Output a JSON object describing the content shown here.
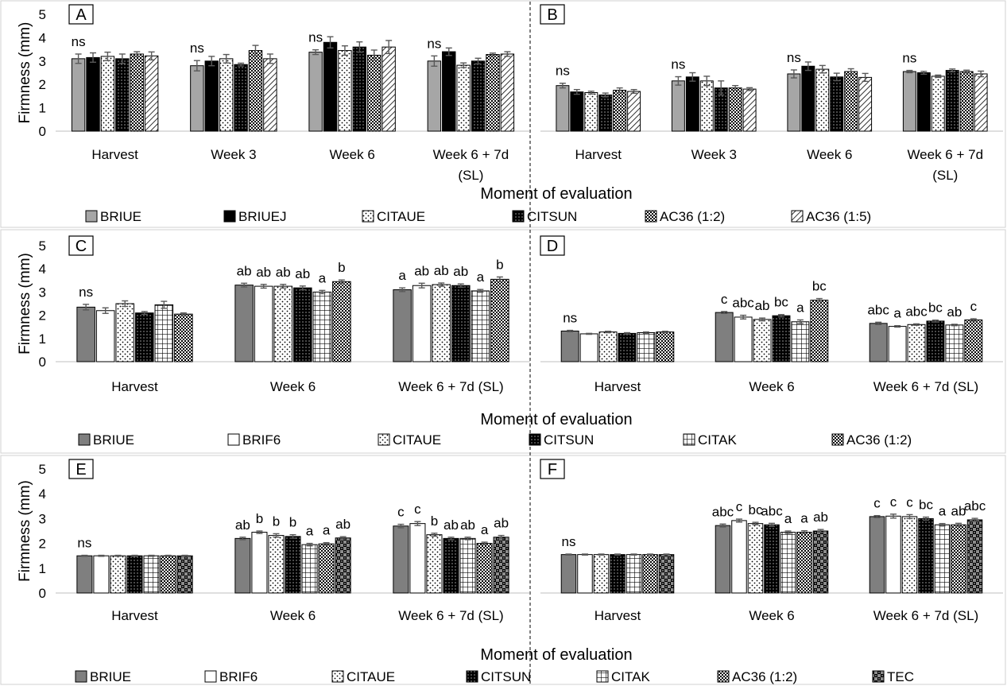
{
  "chart_data": [
    {
      "panel": "A",
      "type": "bar",
      "ylabel": "Firmness (mm)",
      "ylim": [
        0,
        5
      ],
      "categories": [
        "Harvest",
        "Week 3",
        "Week 6",
        "Week 6 + 7d (SL)"
      ],
      "series": [
        {
          "name": "BRIUE",
          "values": [
            3.1,
            2.8,
            3.38,
            3.0
          ],
          "errors": [
            0.2,
            0.22,
            0.1,
            0.22
          ]
        },
        {
          "name": "BRIUEJ",
          "values": [
            3.15,
            3.0,
            3.8,
            3.4
          ],
          "errors": [
            0.2,
            0.2,
            0.24,
            0.16
          ]
        },
        {
          "name": "CITAUE",
          "values": [
            3.2,
            3.1,
            3.45,
            2.82
          ],
          "errors": [
            0.18,
            0.18,
            0.2,
            0.1
          ]
        },
        {
          "name": "CITSUN",
          "values": [
            3.1,
            2.85,
            3.6,
            3.0
          ],
          "errors": [
            0.2,
            0.06,
            0.22,
            0.12
          ]
        },
        {
          "name": "AC36 (1:2)",
          "values": [
            3.3,
            3.45,
            3.25,
            3.28
          ],
          "errors": [
            0.1,
            0.22,
            0.22,
            0.06
          ]
        },
        {
          "name": "AC36 (1:5)",
          "values": [
            3.22,
            3.1,
            3.6,
            3.3
          ],
          "errors": [
            0.17,
            0.2,
            0.28,
            0.1
          ]
        }
      ],
      "significance": [
        "ns",
        "ns",
        "ns",
        "ns"
      ]
    },
    {
      "panel": "B",
      "type": "bar",
      "ylim": [
        0,
        5
      ],
      "categories": [
        "Harvest",
        "Week 3",
        "Week 6",
        "Week 6 + 7d (SL)"
      ],
      "series": [
        {
          "name": "BRIUE",
          "values": [
            1.95,
            2.15,
            2.45,
            2.55
          ],
          "errors": [
            0.1,
            0.18,
            0.17,
            0.05
          ]
        },
        {
          "name": "BRIUEJ",
          "values": [
            1.68,
            2.32,
            2.78,
            2.5
          ],
          "errors": [
            0.1,
            0.18,
            0.18,
            0.06
          ]
        },
        {
          "name": "CITAUE",
          "values": [
            1.65,
            2.15,
            2.65,
            2.35
          ],
          "errors": [
            0.06,
            0.2,
            0.16,
            0.05
          ]
        },
        {
          "name": "CITSUN",
          "values": [
            1.55,
            1.85,
            2.32,
            2.6
          ],
          "errors": [
            0.08,
            0.3,
            0.16,
            0.06
          ]
        },
        {
          "name": "AC36 (1:2)",
          "values": [
            1.75,
            1.85,
            2.55,
            2.55
          ],
          "errors": [
            0.1,
            0.1,
            0.12,
            0.06
          ]
        },
        {
          "name": "AC36 (1:5)",
          "values": [
            1.7,
            1.8,
            2.3,
            2.45
          ],
          "errors": [
            0.08,
            0.06,
            0.17,
            0.12
          ]
        }
      ],
      "significance": [
        "ns",
        "ns",
        "ns",
        "ns"
      ]
    },
    {
      "panel": "C",
      "type": "bar",
      "ylabel": "Firmness (mm)",
      "ylim": [
        0,
        5
      ],
      "categories": [
        "Harvest",
        "Week 6",
        "Week 6 + 7d (SL)"
      ],
      "series": [
        {
          "name": "BRIUE",
          "values": [
            2.35,
            3.3,
            3.1
          ],
          "errors": [
            0.12,
            0.08,
            0.08
          ]
        },
        {
          "name": "BRIF6",
          "values": [
            2.2,
            3.25,
            3.28
          ],
          "errors": [
            0.12,
            0.08,
            0.1
          ]
        },
        {
          "name": "CITAUE",
          "values": [
            2.5,
            3.25,
            3.32
          ],
          "errors": [
            0.12,
            0.08,
            0.07
          ]
        },
        {
          "name": "CITSUN",
          "values": [
            2.1,
            3.18,
            3.28
          ],
          "errors": [
            0.06,
            0.08,
            0.07
          ]
        },
        {
          "name": "CITAK",
          "values": [
            2.45,
            3.0,
            3.05
          ],
          "errors": [
            0.15,
            0.07,
            0.06
          ]
        },
        {
          "name": "AC36 (1:2)",
          "values": [
            2.05,
            3.45,
            3.55
          ],
          "errors": [
            0.05,
            0.07,
            0.1
          ]
        }
      ],
      "labels": [
        [
          "ns",
          "",
          "",
          "",
          "",
          ""
        ],
        [
          "ab",
          "ab",
          "ab",
          "ab",
          "a",
          "b"
        ],
        [
          "a",
          "ab",
          "ab",
          "ab",
          "a",
          "b"
        ]
      ]
    },
    {
      "panel": "D",
      "type": "bar",
      "ylim": [
        0,
        5
      ],
      "categories": [
        "Harvest",
        "Week 6",
        "Week 6 + 7d (SL)"
      ],
      "series": [
        {
          "name": "BRIUE",
          "values": [
            1.32,
            2.12,
            1.65
          ],
          "errors": [
            0.03,
            0.04,
            0.05
          ]
        },
        {
          "name": "BRIF6",
          "values": [
            1.2,
            1.92,
            1.52
          ],
          "errors": [
            0.02,
            0.08,
            0.03
          ]
        },
        {
          "name": "CITAUE",
          "values": [
            1.28,
            1.82,
            1.6
          ],
          "errors": [
            0.03,
            0.06,
            0.03
          ]
        },
        {
          "name": "CITSUN",
          "values": [
            1.22,
            1.98,
            1.75
          ],
          "errors": [
            0.03,
            0.05,
            0.04
          ]
        },
        {
          "name": "CITAK",
          "values": [
            1.25,
            1.72,
            1.58
          ],
          "errors": [
            0.03,
            0.08,
            0.03
          ]
        },
        {
          "name": "AC36 (1:2)",
          "values": [
            1.28,
            2.65,
            1.8
          ],
          "errors": [
            0.03,
            0.07,
            0.05
          ]
        }
      ],
      "labels": [
        [
          "ns",
          "",
          "",
          "",
          "",
          ""
        ],
        [
          "c",
          "abc",
          "ab",
          "bc",
          "a",
          "bc"
        ],
        [
          "abc",
          "a",
          "abc",
          "bc",
          "ab",
          "c"
        ]
      ]
    },
    {
      "panel": "E",
      "type": "bar",
      "ylabel": "Firmness (mm)",
      "ylim": [
        0,
        5
      ],
      "categories": [
        "Harvest",
        "Week 6",
        "Week 6 + 7d (SL)"
      ],
      "series": [
        {
          "name": "BRIUE",
          "values": [
            1.5,
            2.2,
            2.7
          ],
          "errors": [
            0.02,
            0.05,
            0.07
          ]
        },
        {
          "name": "BRIF6",
          "values": [
            1.5,
            2.45,
            2.8
          ],
          "errors": [
            0.02,
            0.05,
            0.08
          ]
        },
        {
          "name": "CITAUE",
          "values": [
            1.5,
            2.32,
            2.35
          ],
          "errors": [
            0.02,
            0.07,
            0.06
          ]
        },
        {
          "name": "CITSUN",
          "values": [
            1.5,
            2.28,
            2.2
          ],
          "errors": [
            0.02,
            0.07,
            0.05
          ]
        },
        {
          "name": "CITAK",
          "values": [
            1.5,
            1.95,
            2.2
          ],
          "errors": [
            0.02,
            0.05,
            0.05
          ]
        },
        {
          "name": "AC36 (1:2)",
          "values": [
            1.5,
            1.98,
            2.0
          ],
          "errors": [
            0.02,
            0.05,
            0.05
          ]
        },
        {
          "name": "TEC",
          "values": [
            1.5,
            2.22,
            2.25
          ],
          "errors": [
            0.02,
            0.05,
            0.07
          ]
        }
      ],
      "labels": [
        [
          "ns",
          "",
          "",
          "",
          "",
          "",
          ""
        ],
        [
          "ab",
          "b",
          "b",
          "b",
          "a",
          "a",
          "ab"
        ],
        [
          "c",
          "c",
          "b",
          "ab",
          "ab",
          "a",
          "ab"
        ]
      ]
    },
    {
      "panel": "F",
      "type": "bar",
      "ylim": [
        0,
        5
      ],
      "categories": [
        "Harvest",
        "Week 6",
        "Week 6 + 7d (SL)"
      ],
      "series": [
        {
          "name": "BRIUE",
          "values": [
            1.55,
            2.72,
            3.08
          ],
          "errors": [
            0.02,
            0.06,
            0.04
          ]
        },
        {
          "name": "BRIF6",
          "values": [
            1.55,
            2.92,
            3.1
          ],
          "errors": [
            0.02,
            0.06,
            0.08
          ]
        },
        {
          "name": "CITAUE",
          "values": [
            1.55,
            2.8,
            3.08
          ],
          "errors": [
            0.02,
            0.05,
            0.08
          ]
        },
        {
          "name": "CITSUN",
          "values": [
            1.55,
            2.75,
            3.0
          ],
          "errors": [
            0.02,
            0.06,
            0.06
          ]
        },
        {
          "name": "CITAK",
          "values": [
            1.55,
            2.45,
            2.75
          ],
          "errors": [
            0.02,
            0.05,
            0.05
          ]
        },
        {
          "name": "AC36 (1:2)",
          "values": [
            1.55,
            2.45,
            2.75
          ],
          "errors": [
            0.02,
            0.06,
            0.06
          ]
        },
        {
          "name": "TEC",
          "values": [
            1.55,
            2.5,
            2.95
          ],
          "errors": [
            0.02,
            0.06,
            0.06
          ]
        }
      ],
      "labels": [
        [
          "ns",
          "",
          "",
          "",
          "",
          "",
          ""
        ],
        [
          "abc",
          "c",
          "bc",
          "abc",
          "a",
          "a",
          "ab"
        ],
        [
          "c",
          "c",
          "c",
          "bc",
          "a",
          "ab",
          "abc"
        ]
      ]
    }
  ],
  "ylabel": "Firmness (mm)",
  "xlabel": "Moment of evaluation",
  "y_ticks": [
    "0",
    "1",
    "2",
    "3",
    "4",
    "5"
  ],
  "legends": [
    [
      {
        "name": "BRIUE",
        "pattern": "gray"
      },
      {
        "name": "BRIUEJ",
        "pattern": "black"
      },
      {
        "name": "CITAUE",
        "pattern": "dots"
      },
      {
        "name": "CITSUN",
        "pattern": "blackdots"
      },
      {
        "name": "AC36 (1:2)",
        "pattern": "dense"
      },
      {
        "name": "AC36 (1:5)",
        "pattern": "hatch"
      }
    ],
    [
      {
        "name": "BRIUE",
        "pattern": "darkgray"
      },
      {
        "name": "BRIF6",
        "pattern": "white"
      },
      {
        "name": "CITAUE",
        "pattern": "dots"
      },
      {
        "name": "CITSUN",
        "pattern": "blackdots"
      },
      {
        "name": "CITAK",
        "pattern": "grid"
      },
      {
        "name": "AC36 (1:2)",
        "pattern": "dense"
      }
    ],
    [
      {
        "name": "BRIUE",
        "pattern": "darkgray"
      },
      {
        "name": "BRIF6",
        "pattern": "white"
      },
      {
        "name": "CITAUE",
        "pattern": "dots"
      },
      {
        "name": "CITSUN",
        "pattern": "blackdots"
      },
      {
        "name": "CITAK",
        "pattern": "grid"
      },
      {
        "name": "AC36 (1:2)",
        "pattern": "dense"
      },
      {
        "name": "TEC",
        "pattern": "checker"
      }
    ]
  ],
  "colors": {
    "gray": "#a6a6a6",
    "darkgray": "#7f7f7f",
    "black": "#000000",
    "axis": "#bfbfbf"
  }
}
